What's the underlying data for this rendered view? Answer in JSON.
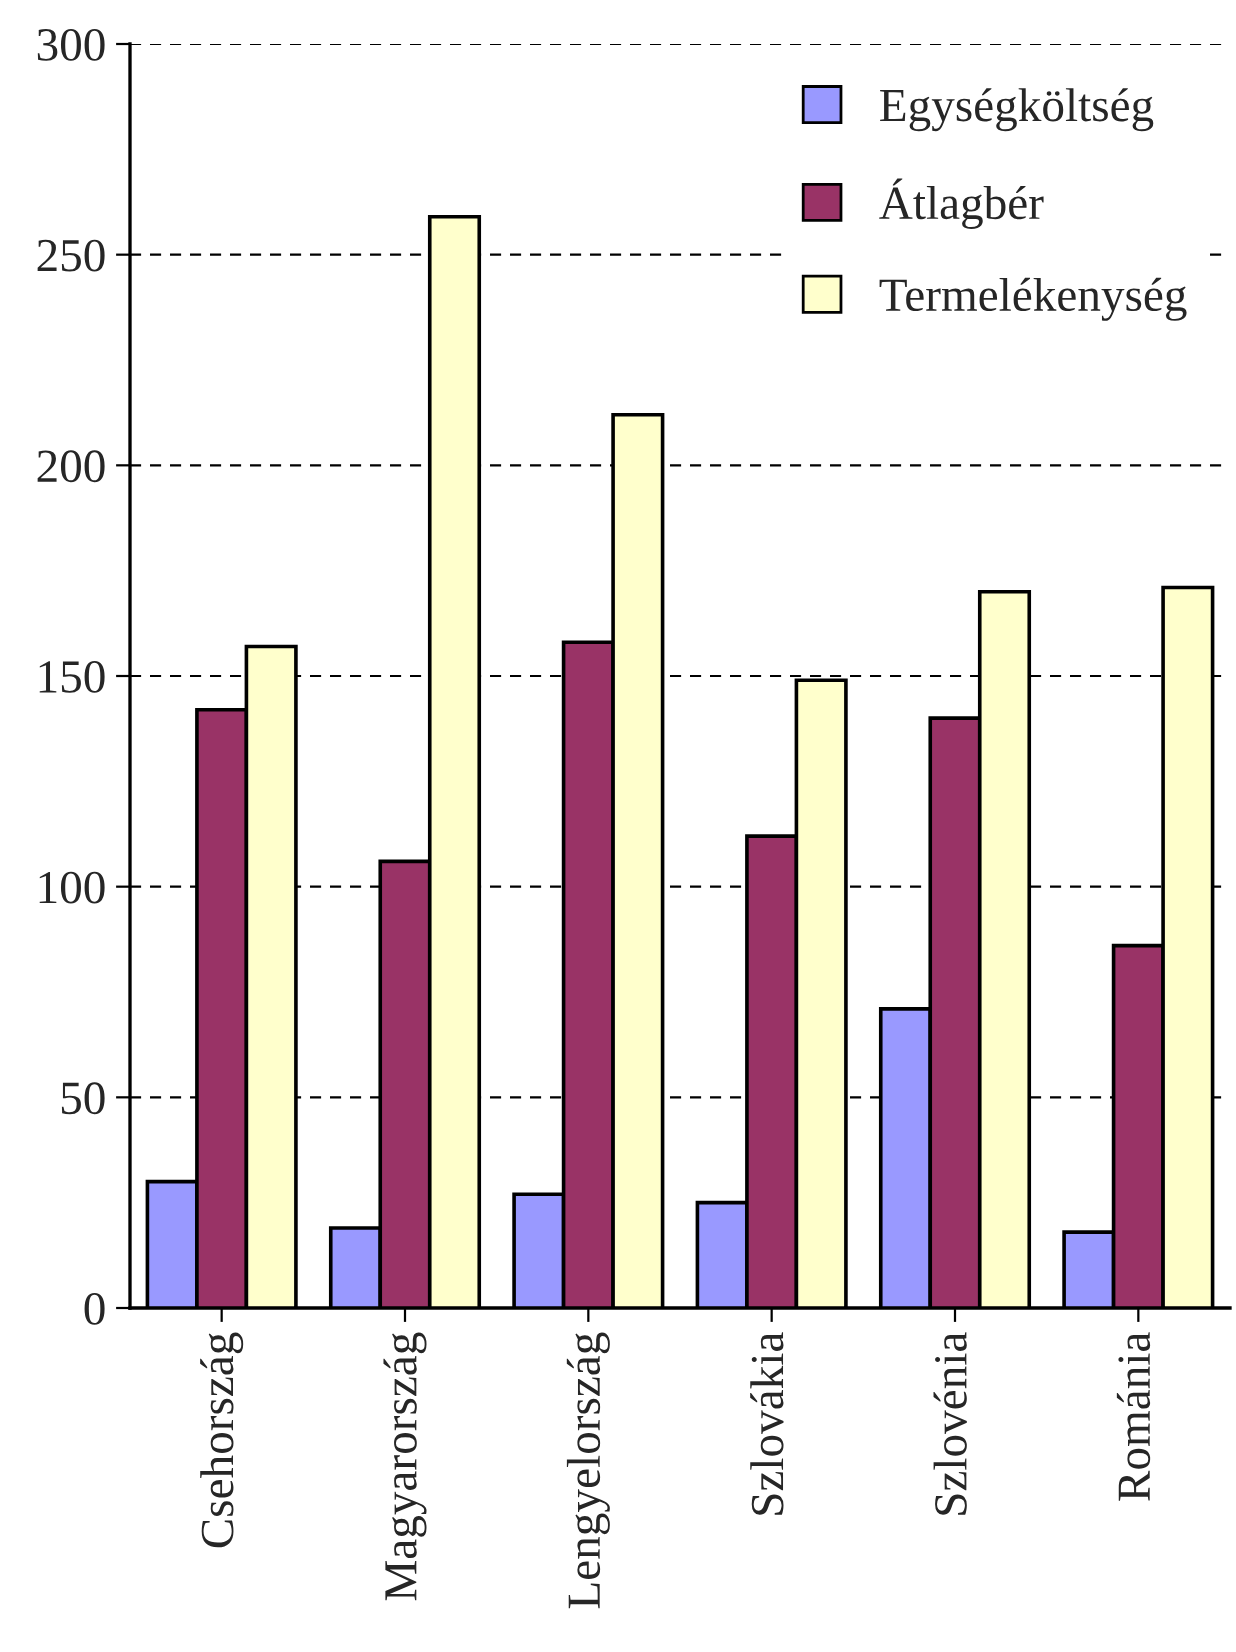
{
  "chart_data": {
    "type": "bar",
    "categories": [
      "Csehország",
      "Magyarország",
      "Lengyelország",
      "Szlovákia",
      "Szlovénia",
      "Románia"
    ],
    "series": [
      {
        "name": "Egységköltség",
        "color": "#9999ff",
        "values": [
          30,
          19,
          27,
          25,
          71,
          18
        ]
      },
      {
        "name": "Átlagbér",
        "color": "#993366",
        "values": [
          142,
          106,
          158,
          112,
          140,
          86
        ]
      },
      {
        "name": "Termelékenység",
        "color": "#ffffcc",
        "values": [
          157,
          259,
          212,
          149,
          170,
          171
        ]
      }
    ],
    "ylim": [
      0,
      300
    ],
    "yticks": [
      0,
      50,
      100,
      150,
      200,
      250,
      300
    ],
    "grid": "y",
    "legend": "top right"
  }
}
